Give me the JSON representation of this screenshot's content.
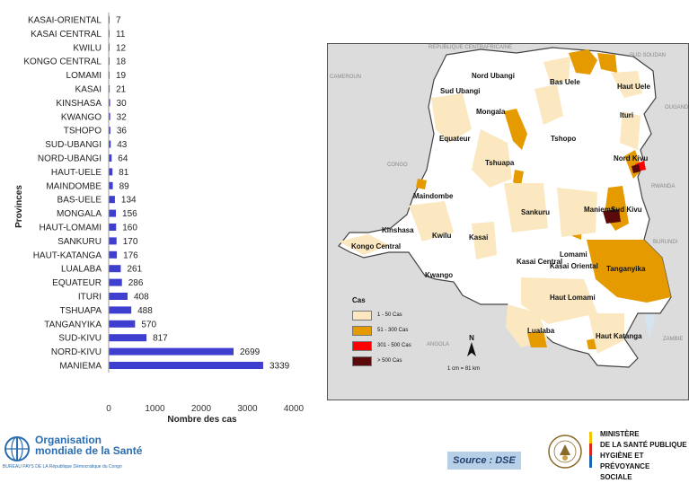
{
  "chart_data": {
    "type": "bar",
    "orientation": "horizontal",
    "categories": [
      "KASAI-ORIENTAL",
      "KASAI CENTRAL",
      "KWILU",
      "KONGO CENTRAL",
      "LOMAMI",
      "KASAI",
      "KINSHASA",
      "KWANGO",
      "TSHOPO",
      "SUD-UBANGI",
      "NORD-UBANGI",
      "HAUT-UELE",
      "MAINDOMBE",
      "BAS-UELE",
      "MONGALA",
      "HAUT-LOMAMI",
      "SANKURU",
      "HAUT-KATANGA",
      "LUALABA",
      "EQUATEUR",
      "ITURI",
      "TSHUAPA",
      "TANGANYIKA",
      "SUD-KIVU",
      "NORD-KIVU",
      "MANIEMA"
    ],
    "values": [
      7,
      11,
      12,
      18,
      19,
      21,
      30,
      32,
      36,
      43,
      64,
      81,
      89,
      134,
      156,
      160,
      170,
      176,
      261,
      286,
      408,
      488,
      570,
      817,
      2699,
      3339
    ],
    "xlabel": "Nombre des cas",
    "ylabel": "Provinces",
    "xlim": [
      0,
      4000
    ],
    "xticks": [
      0,
      1000,
      2000,
      3000,
      4000
    ],
    "bar_color": "#3f3fcf",
    "grid": false
  },
  "map": {
    "province_labels": [
      "Nord Ubangi",
      "Bas Uele",
      "Haut Uele",
      "Sud Ubangi",
      "Mongala",
      "Ituri",
      "Equateur",
      "Tshopo",
      "Nord Kivu",
      "Tshuapa",
      "Maindombe",
      "Maniema",
      "Sud Kivu",
      "Sankuru",
      "Kinshasa",
      "Kwilu",
      "Kasai",
      "Kongo Central",
      "Lomami",
      "Kasai Oriental",
      "Kasai Central",
      "Kwango",
      "Tanganyika",
      "Haut Lomami",
      "Lualaba",
      "Haut Katanga"
    ],
    "country_labels": [
      "RÉPUBLIQUE CENTRAFRICAINE",
      "SUD SOUDAN",
      "CAMEROUN",
      "CONGO",
      "RWANDA",
      "BURUNDI",
      "ANGOLA",
      "ZAMBIE",
      "OUGANDA"
    ],
    "legend_title": "Cas",
    "legend": [
      {
        "label": "1 -  50 Cas",
        "color": "#fbe8c0"
      },
      {
        "label": "51 - 300 Cas",
        "color": "#e59a00"
      },
      {
        "label": "301 - 500 Cas",
        "color": "#ff0000"
      },
      {
        "label": "> 500 Cas",
        "color": "#5a0a0a"
      }
    ],
    "north_label": "N",
    "scale_text": "1 cm = 81 km"
  },
  "footer": {
    "who_line1": "Organisation",
    "who_line2": "mondiale de la Santé",
    "who_sub": "BUREAU PAYS DE LA   République Démocratique du Congo",
    "source": "Source : DSE",
    "ministry": [
      "MINISTÈRE",
      "DE LA SANTÉ PUBLIQUE",
      "HYGIÈNE ET PRÉVOYANCE",
      "SOCIALE"
    ]
  }
}
